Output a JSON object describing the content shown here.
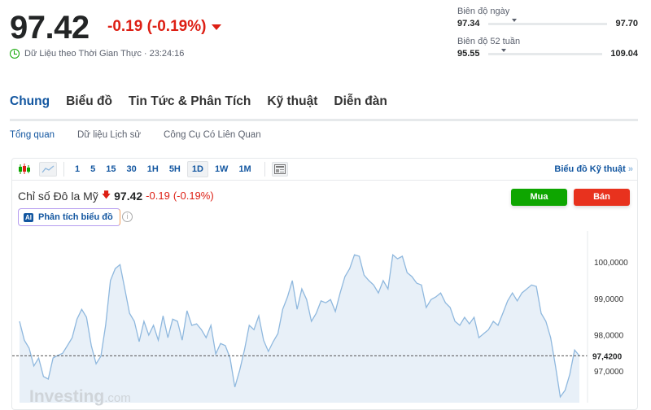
{
  "quote": {
    "price": "97.42",
    "change": "-0.19 (-0.19%)",
    "realtime_label": "Dữ Liệu theo Thời Gian Thực · 23:24:16",
    "direction": "down",
    "color_down": "#dd1f14"
  },
  "ranges": [
    {
      "label": "Biên độ ngày",
      "low": "97.34",
      "high": "97.70",
      "position": 0.22
    },
    {
      "label": "Biên độ 52 tuần",
      "low": "95.55",
      "high": "109.04",
      "position": 0.14
    }
  ],
  "tabs": [
    {
      "label": "Chung",
      "active": true
    },
    {
      "label": "Biểu đồ"
    },
    {
      "label": "Tin Tức & Phân Tích"
    },
    {
      "label": "Kỹ thuật"
    },
    {
      "label": "Diễn đàn"
    }
  ],
  "subtabs": [
    {
      "label": "Tổng quan",
      "active": true
    },
    {
      "label": "Dữ liệu Lịch sử"
    },
    {
      "label": "Công Cụ Có Liên Quan"
    }
  ],
  "toolbar": {
    "intervals": [
      "1",
      "5",
      "15",
      "30",
      "1H",
      "5H",
      "1D",
      "1W",
      "1M"
    ],
    "selected": "1D",
    "tech_link": "Biểu đồ Kỹ thuật",
    "icons": [
      "candlestick-icon",
      "area-chart-icon",
      "layout-icon"
    ]
  },
  "instrument": {
    "name": "Chỉ số Đô la Mỹ",
    "price": "97.42",
    "change": "-0.19",
    "change_pct": "(-0.19%)",
    "ai_button": "Phân tích biểu đồ",
    "buy": "Mua",
    "sell": "Bán",
    "buy_color": "#0ea600",
    "sell_color": "#e8321e"
  },
  "watermark": "Investing.com",
  "chart_data": {
    "type": "area",
    "ylim": [
      96.13,
      100.72
    ],
    "y_ticks": [
      "100,0000",
      "99,0000",
      "98,0000",
      "97,0000"
    ],
    "y_tick_values": [
      100,
      99,
      98,
      97
    ],
    "current_value": 97.42,
    "current_label": "97,4200",
    "line_color": "#8fb8de",
    "fill_color": "#e8f0f8",
    "values": [
      98.37,
      97.85,
      97.63,
      97.14,
      97.36,
      96.85,
      96.78,
      97.36,
      97.43,
      97.49,
      97.7,
      97.92,
      98.43,
      98.7,
      98.48,
      97.7,
      97.2,
      97.41,
      98.26,
      99.49,
      99.82,
      99.93,
      99.26,
      98.59,
      98.37,
      97.81,
      98.37,
      97.99,
      98.26,
      97.85,
      98.52,
      97.92,
      98.43,
      98.37,
      97.85,
      98.66,
      98.26,
      98.3,
      98.14,
      97.92,
      98.26,
      97.47,
      97.76,
      97.7,
      97.36,
      96.56,
      97.02,
      97.58,
      98.26,
      98.14,
      98.52,
      97.85,
      97.54,
      97.81,
      98.03,
      98.7,
      99.04,
      99.49,
      98.7,
      99.26,
      98.97,
      98.37,
      98.59,
      98.93,
      98.88,
      98.97,
      98.64,
      99.15,
      99.6,
      99.82,
      100.2,
      100.16,
      99.64,
      99.49,
      99.37,
      99.15,
      99.49,
      99.26,
      100.2,
      100.09,
      100.16,
      99.71,
      99.6,
      99.42,
      99.37,
      98.75,
      98.97,
      99.04,
      99.15,
      98.88,
      98.75,
      98.37,
      98.26,
      98.48,
      98.3,
      98.48,
      97.92,
      98.03,
      98.14,
      98.37,
      98.26,
      98.59,
      98.93,
      99.15,
      98.93,
      99.15,
      99.26,
      99.37,
      99.33,
      98.59,
      98.37,
      97.92,
      97.14,
      96.29,
      96.47,
      96.91,
      97.58,
      97.42
    ]
  }
}
